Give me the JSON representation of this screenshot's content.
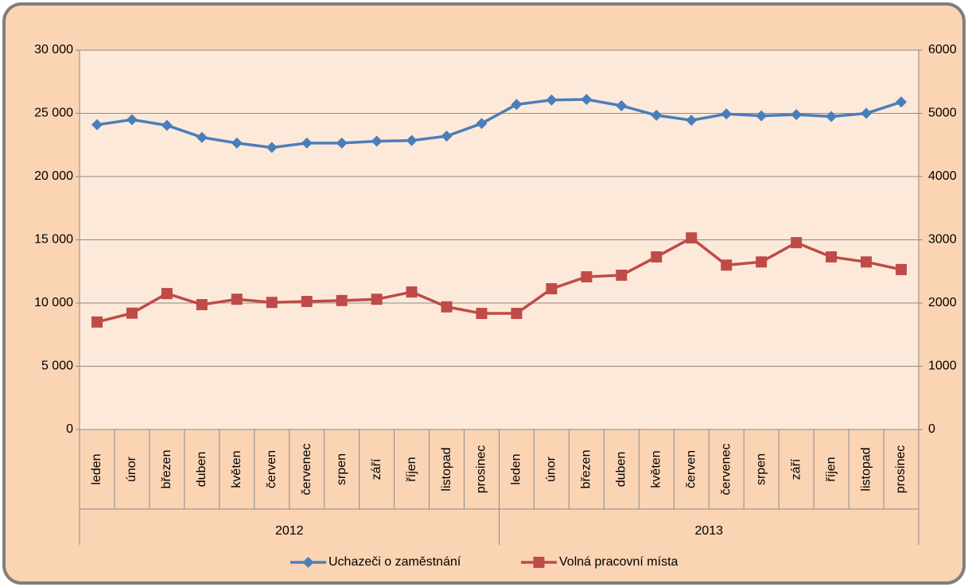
{
  "chart_data": {
    "type": "line",
    "categories": [
      "leden",
      "únor",
      "březen",
      "duben",
      "květen",
      "červen",
      "červenec",
      "srpen",
      "září",
      "říjen",
      "listopad",
      "prosinec",
      "leden",
      "únor",
      "březen",
      "duben",
      "květen",
      "červen",
      "červenec",
      "srpen",
      "září",
      "říjen",
      "listopad",
      "prosinec"
    ],
    "category_groups": [
      "2012",
      "2013"
    ],
    "series": [
      {
        "name": "Uchazeči o zaměstnání",
        "color": "#4a7ebb",
        "marker": "diamond",
        "values": [
          24100,
          24500,
          24050,
          23100,
          22650,
          22300,
          22650,
          22650,
          22800,
          22850,
          23200,
          24200,
          25700,
          26050,
          26100,
          25600,
          24850,
          24450,
          24950,
          24800,
          24900,
          24750,
          25000,
          25900
        ]
      },
      {
        "name": "Volná pracovní místa",
        "color": "#be4b48",
        "marker": "square",
        "axis": "y2",
        "values": [
          1700,
          1840,
          2150,
          1975,
          2060,
          2010,
          2025,
          2040,
          2060,
          2175,
          1940,
          1836,
          1836,
          2226,
          2415,
          2440,
          2730,
          3030,
          2600,
          2650,
          2955,
          2730,
          2650,
          2530
        ]
      }
    ],
    "ylim": [
      0,
      30000
    ],
    "yticks": [
      0,
      {
        "value": 5000,
        "label": "5 000"
      },
      {
        "value": 10000,
        "label": "10 000"
      },
      {
        "value": 15000,
        "label": "15 000"
      },
      {
        "value": 20000,
        "label": "20 000"
      },
      {
        "value": 25000,
        "label": "25 000"
      },
      {
        "value": 30000,
        "label": "30 000"
      }
    ],
    "y2lim": [
      0,
      6000
    ],
    "y2ticks": [
      0,
      1000,
      2000,
      3000,
      4000,
      5000,
      6000
    ],
    "grid": true,
    "legend": "bottom"
  }
}
